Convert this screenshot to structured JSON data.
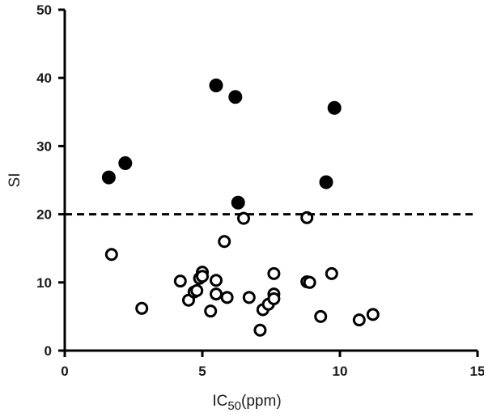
{
  "chart_data": {
    "type": "scatter",
    "title": "",
    "xlabel": {
      "main": "IC",
      "sub": "50",
      "unit": "(ppm)"
    },
    "ylabel": "SI",
    "xlim": [
      0,
      15
    ],
    "ylim": [
      0,
      50
    ],
    "xticks": [
      {
        "value": 0,
        "label": "0"
      },
      {
        "value": 5,
        "label": "5"
      },
      {
        "value": 10,
        "label": "10"
      },
      {
        "value": 15,
        "label": "15"
      }
    ],
    "yticks": [
      {
        "value": 0,
        "label": "0"
      },
      {
        "value": 10,
        "label": "10"
      },
      {
        "value": 20,
        "label": "20"
      },
      {
        "value": 30,
        "label": "30"
      },
      {
        "value": 40,
        "label": "40"
      },
      {
        "value": 50,
        "label": "50"
      }
    ],
    "grid": false,
    "threshold": {
      "y": 20,
      "style": "dashed"
    },
    "series": [
      {
        "marker": "filled-circle",
        "points": [
          [
            1.6,
            25.4
          ],
          [
            2.2,
            27.5
          ],
          [
            5.5,
            38.9
          ],
          [
            6.2,
            37.2
          ],
          [
            6.3,
            21.7
          ],
          [
            9.5,
            24.7
          ],
          [
            9.8,
            35.6
          ]
        ]
      },
      {
        "marker": "open-circle",
        "points": [
          [
            1.7,
            14.1
          ],
          [
            2.8,
            6.2
          ],
          [
            4.2,
            10.2
          ],
          [
            4.5,
            7.4
          ],
          [
            4.7,
            8.6
          ],
          [
            4.8,
            8.8
          ],
          [
            4.9,
            10.6
          ],
          [
            5.0,
            11.5
          ],
          [
            5.0,
            10.9
          ],
          [
            5.3,
            5.8
          ],
          [
            5.5,
            10.3
          ],
          [
            5.5,
            8.3
          ],
          [
            5.8,
            16.0
          ],
          [
            5.9,
            7.8
          ],
          [
            6.5,
            19.4
          ],
          [
            6.7,
            7.8
          ],
          [
            7.1,
            3.0
          ],
          [
            7.2,
            6.0
          ],
          [
            7.4,
            6.8
          ],
          [
            7.6,
            8.3
          ],
          [
            7.6,
            7.6
          ],
          [
            7.6,
            11.3
          ],
          [
            8.8,
            19.5
          ],
          [
            8.8,
            10.1
          ],
          [
            8.9,
            10.0
          ],
          [
            9.3,
            5.0
          ],
          [
            9.7,
            11.3
          ],
          [
            10.7,
            4.5
          ],
          [
            11.2,
            5.3
          ]
        ]
      }
    ]
  }
}
